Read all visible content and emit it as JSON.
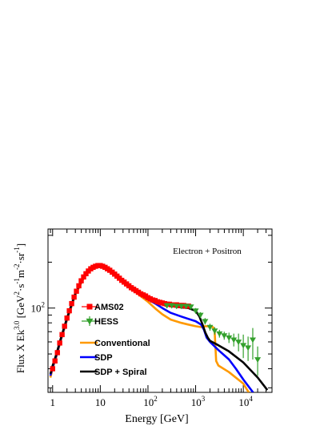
{
  "chart_data": {
    "type": "line",
    "annotation": "Electron + Positron",
    "xlabel": "Energy [GeV]",
    "ylabel_main": "Flux X Ek",
    "ylabel_exp": "3.0",
    "ylabel_unit": "[GeV",
    "ylabel_unit_exp": "2",
    "ylabel_unit_rest": "·s",
    "ylabel_unit_exp2": "-1",
    "ylabel_unit_rest2": "m",
    "ylabel_unit_exp3": "-2",
    "ylabel_unit_rest3": "sr",
    "ylabel_unit_exp4": "-1",
    "ylabel_unit_end": "]",
    "xscale": "log",
    "yscale": "log",
    "xlim": [
      0.8,
      40000
    ],
    "ylim": [
      28,
      330
    ],
    "x_ticks": [
      {
        "value": 1,
        "label": "1"
      },
      {
        "value": 10,
        "label": "10"
      },
      {
        "value": 100,
        "label": "10",
        "exp": "2"
      },
      {
        "value": 1000,
        "label": "10",
        "exp": "3"
      },
      {
        "value": 10000,
        "label": "10",
        "exp": "4"
      }
    ],
    "y_ticks": [
      {
        "value": 100,
        "label": "10",
        "exp": "2"
      }
    ],
    "legend_position": "left-middle",
    "legend": [
      {
        "name": "AMS02",
        "color": "#ff0000",
        "kind": "marker-square"
      },
      {
        "name": "HESS",
        "color": "#33a02c",
        "kind": "marker-triangle-down"
      },
      {
        "name": "Conventional",
        "color": "#ff9900",
        "kind": "line"
      },
      {
        "name": "SDP",
        "color": "#0000ff",
        "kind": "line"
      },
      {
        "name": "SDP + Spiral",
        "color": "#000000",
        "kind": "line"
      }
    ],
    "series": [
      {
        "name": "AMS02",
        "color": "#ff0000",
        "kind": "points",
        "x": [
          1.0,
          1.12,
          1.26,
          1.41,
          1.58,
          1.78,
          2.0,
          2.24,
          2.51,
          2.82,
          3.16,
          3.55,
          3.98,
          4.47,
          5.01,
          5.62,
          6.31,
          7.08,
          7.94,
          8.91,
          10.0,
          11.2,
          12.6,
          14.1,
          15.8,
          17.8,
          20.0,
          22.4,
          25.1,
          28.2,
          31.6,
          35.5,
          39.8,
          44.7,
          50.1,
          56.2,
          63.1,
          70.8,
          79.4,
          89.1,
          100,
          112,
          126,
          141,
          158,
          178,
          200,
          224,
          251,
          282,
          316,
          355,
          398,
          447,
          501,
          562,
          631,
          708
        ],
        "y": [
          40,
          45,
          51,
          59,
          67,
          76,
          86,
          96,
          107,
          118,
          129,
          140,
          151,
          160,
          168,
          175,
          181,
          185,
          188,
          190,
          190,
          188,
          185,
          181,
          177,
          172,
          167,
          162,
          157,
          152,
          148,
          144,
          140,
          136,
          133,
          130,
          127,
          124,
          122,
          120,
          117,
          115,
          113,
          112,
          110,
          109,
          108,
          107,
          106,
          106,
          105,
          105,
          105,
          104,
          104,
          104,
          103,
          103
        ]
      },
      {
        "name": "HESS",
        "color": "#33a02c",
        "kind": "points",
        "x": [
          250,
          316,
          398,
          501,
          631,
          794,
          1000,
          1260,
          1580,
          2000,
          2510,
          3160,
          3980,
          5010,
          6310,
          7940,
          10000,
          12600,
          15800,
          20000
        ],
        "y": [
          104,
          104,
          103,
          103,
          103,
          102,
          96,
          90,
          82,
          75,
          71,
          68,
          66,
          64,
          62,
          60,
          57,
          55,
          62,
          46
        ],
        "err_low": [
          4,
          4,
          4,
          4,
          4,
          4,
          4,
          4,
          4,
          4,
          4,
          4,
          4,
          5,
          6,
          8,
          10,
          10,
          16,
          10
        ],
        "err_high": [
          4,
          4,
          4,
          4,
          4,
          4,
          4,
          4,
          4,
          4,
          4,
          4,
          4,
          5,
          6,
          8,
          10,
          10,
          12,
          10
        ]
      },
      {
        "name": "Conventional",
        "color": "#ff9900",
        "kind": "line",
        "x": [
          0.9,
          1.0,
          1.2,
          1.5,
          2.0,
          3.0,
          5.0,
          7.0,
          10,
          15,
          20,
          30,
          50,
          70,
          100,
          150,
          200,
          300,
          500,
          700,
          1000,
          1300,
          1600,
          2000,
          2300,
          2500,
          2700,
          3000,
          5000,
          10000,
          13000
        ],
        "y": [
          35,
          40,
          48,
          62,
          83,
          122,
          168,
          184,
          187,
          178,
          167,
          150,
          131,
          120,
          110,
          98,
          91,
          84,
          80,
          78,
          76,
          75,
          76,
          76,
          75,
          72,
          45,
          42,
          38,
          32,
          28
        ]
      },
      {
        "name": "SDP",
        "color": "#0000ff",
        "kind": "line",
        "x": [
          0.9,
          1.0,
          1.2,
          1.5,
          2.0,
          3.0,
          5.0,
          7.0,
          10,
          15,
          20,
          30,
          50,
          70,
          100,
          150,
          200,
          300,
          500,
          700,
          1000,
          1300,
          1500,
          1700,
          2000,
          3000,
          5000,
          7000,
          10000,
          16000
        ],
        "y": [
          36,
          41,
          49,
          63,
          85,
          124,
          170,
          186,
          189,
          180,
          169,
          152,
          133,
          122,
          114,
          106,
          100,
          93,
          88,
          85,
          82,
          78,
          72,
          64,
          60,
          53,
          46,
          40,
          34,
          28
        ]
      },
      {
        "name": "SDP + Spiral",
        "color": "#000000",
        "kind": "line",
        "x": [
          0.9,
          1.0,
          1.2,
          1.5,
          2.0,
          3.0,
          5.0,
          7.0,
          10,
          15,
          20,
          30,
          50,
          70,
          100,
          150,
          200,
          300,
          500,
          700,
          1000,
          1200,
          1400,
          1600,
          1800,
          2000,
          3000,
          5000,
          10000,
          20000,
          32000
        ],
        "y": [
          37,
          42,
          50,
          64,
          86,
          125,
          171,
          187,
          190,
          181,
          170,
          153,
          134,
          123,
          116,
          109,
          106,
          103,
          101,
          100,
          96,
          88,
          78,
          69,
          64,
          61,
          57,
          52,
          44,
          35,
          29
        ]
      }
    ]
  }
}
